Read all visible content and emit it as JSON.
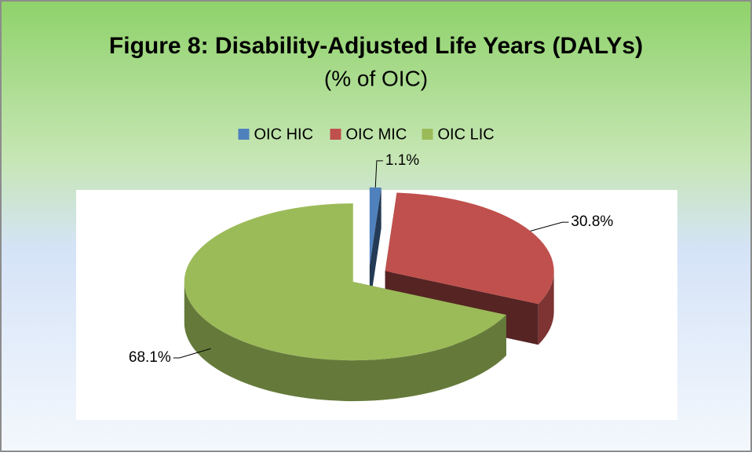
{
  "chart_data": {
    "type": "pie",
    "title": "Figure 8: Disability-Adjusted Life Years (DALYs)",
    "subtitle": "(% of OIC)",
    "categories": [
      "OIC HIC",
      "OIC MIC",
      "OIC LIC"
    ],
    "values": [
      1.1,
      30.8,
      68.1
    ],
    "value_labels": [
      "1.1%",
      "30.8%",
      "68.1%"
    ],
    "colors": [
      "#4f81bd",
      "#c0504d",
      "#9bbb59"
    ],
    "legend": "top"
  }
}
